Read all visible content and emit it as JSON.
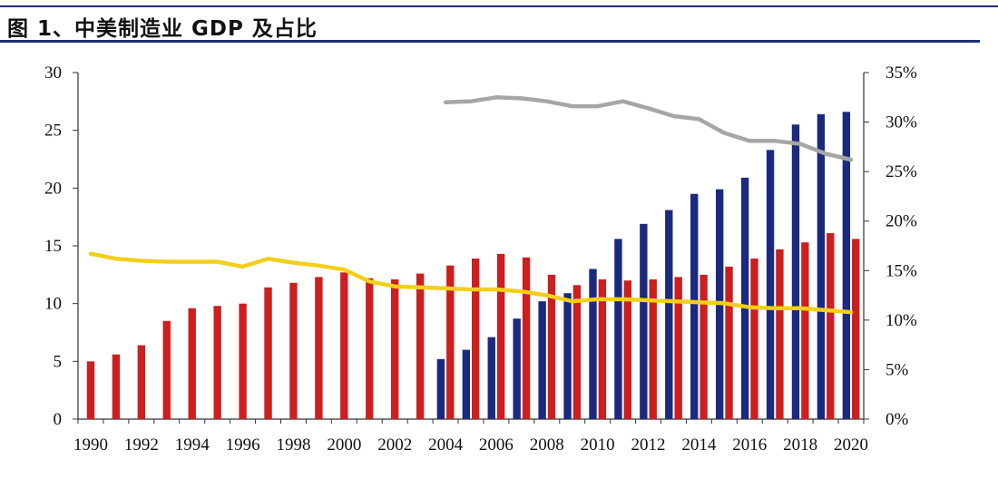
{
  "title": "图 1、中美制造业 GDP 及占比",
  "colors": {
    "rule": "#1f2f6e",
    "china_bar": "#1b2a7e",
    "us_bar": "#cc1f1f",
    "china_share_line": "#a6a6a6",
    "us_share_line": "#f2cf1b",
    "axis": "#333333"
  },
  "chart_data": {
    "type": "bar",
    "x": [
      1990,
      1991,
      1992,
      1993,
      1994,
      1995,
      1996,
      1997,
      1998,
      1999,
      2000,
      2001,
      2002,
      2003,
      2004,
      2005,
      2006,
      2007,
      2008,
      2009,
      2010,
      2011,
      2012,
      2013,
      2014,
      2015,
      2016,
      2017,
      2018,
      2019,
      2020
    ],
    "x_tick_labels": [
      "1990",
      "1992",
      "1994",
      "1996",
      "1998",
      "2000",
      "2002",
      "2004",
      "2006",
      "2008",
      "2010",
      "2012",
      "2014",
      "2016",
      "2018",
      "2020"
    ],
    "y_left_ticks": [
      "0",
      "5",
      "10",
      "15",
      "20",
      "25",
      "30"
    ],
    "y_left_lim": [
      0,
      30
    ],
    "y_right_ticks": [
      "0%",
      "5%",
      "10%",
      "15%",
      "20%",
      "25%",
      "30%",
      "35%"
    ],
    "y_right_lim": [
      0,
      35
    ],
    "grid": false,
    "legend": "none",
    "series": [
      {
        "kind": "bar",
        "axis": "left",
        "color_key": "china_bar",
        "values": [
          null,
          null,
          null,
          null,
          null,
          null,
          null,
          null,
          null,
          null,
          null,
          null,
          null,
          null,
          5.2,
          6.0,
          7.1,
          8.7,
          10.2,
          10.9,
          13.0,
          15.6,
          16.9,
          18.1,
          19.5,
          19.9,
          20.9,
          23.3,
          25.5,
          26.4,
          26.6
        ]
      },
      {
        "kind": "bar",
        "axis": "left",
        "color_key": "us_bar",
        "values": [
          5.0,
          5.6,
          6.4,
          8.5,
          9.6,
          9.8,
          10.0,
          11.4,
          11.8,
          12.3,
          12.7,
          12.2,
          12.1,
          12.6,
          13.3,
          13.9,
          14.3,
          14.0,
          12.5,
          11.6,
          12.1,
          12.0,
          12.1,
          12.3,
          12.5,
          13.2,
          13.9,
          14.7,
          15.3,
          16.1,
          15.6
        ]
      },
      {
        "kind": "line",
        "axis": "right",
        "color_key": "china_share_line",
        "values": [
          null,
          null,
          null,
          null,
          null,
          null,
          null,
          null,
          null,
          null,
          null,
          null,
          null,
          null,
          32.0,
          32.1,
          32.5,
          32.4,
          32.1,
          31.6,
          31.6,
          32.1,
          31.4,
          30.6,
          30.3,
          28.9,
          28.1,
          28.1,
          27.8,
          26.8,
          26.2
        ]
      },
      {
        "kind": "line",
        "axis": "right",
        "color_key": "us_share_line",
        "values": [
          16.7,
          16.2,
          16.0,
          15.9,
          15.9,
          15.9,
          15.4,
          16.2,
          15.8,
          15.5,
          15.1,
          13.9,
          13.4,
          13.3,
          13.2,
          13.1,
          13.1,
          12.9,
          12.5,
          11.9,
          12.1,
          12.1,
          12.0,
          11.9,
          11.8,
          11.7,
          11.3,
          11.2,
          11.2,
          11.0,
          10.8
        ]
      }
    ]
  }
}
